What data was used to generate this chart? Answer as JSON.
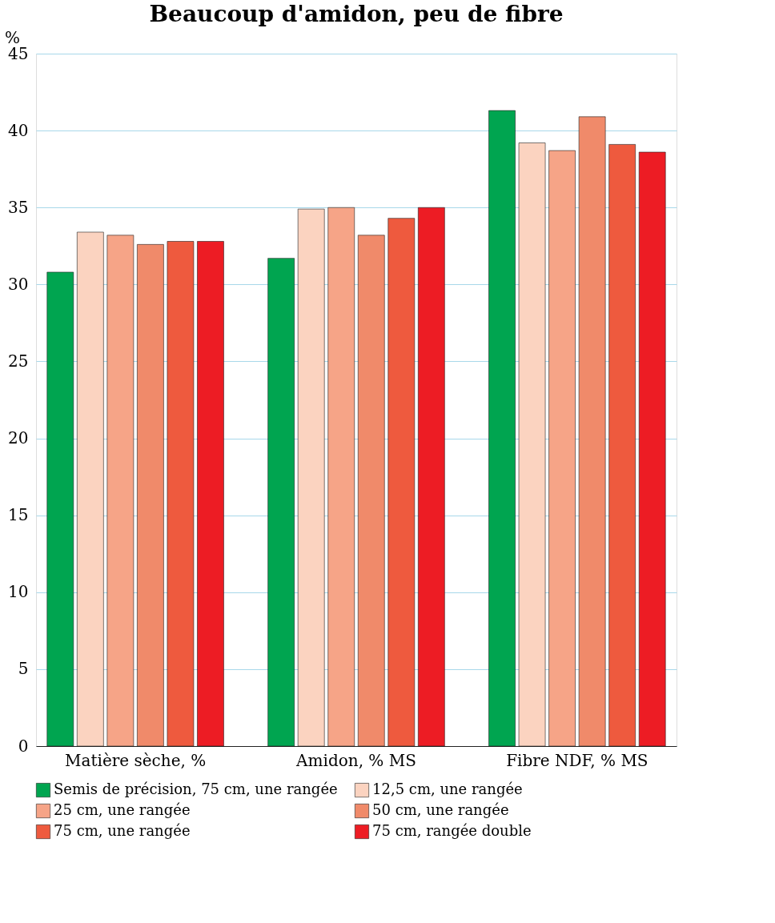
{
  "chart_data": {
    "type": "bar",
    "title": "Beaucoup d'amidon, peu de fibre",
    "ylabel": "%",
    "categories": [
      "Matière sèche, %",
      "Amidon, % MS",
      "Fibre NDF, % MS"
    ],
    "series": [
      {
        "name": "Semis de précision, 75 cm, une rangée",
        "color": "#00a550",
        "values": [
          30.8,
          31.7,
          41.3
        ]
      },
      {
        "name": "12,5 cm, une rangée",
        "color": "#fbd3c0",
        "values": [
          33.4,
          34.9,
          39.2
        ]
      },
      {
        "name": "25 cm, une rangée",
        "color": "#f6a487",
        "values": [
          33.2,
          35.0,
          38.7
        ]
      },
      {
        "name": "50 cm, une rangée",
        "color": "#f08a6a",
        "values": [
          32.6,
          33.2,
          40.9
        ]
      },
      {
        "name": "75 cm, une rangée",
        "color": "#ee5a3e",
        "values": [
          32.8,
          34.3,
          39.1
        ]
      },
      {
        "name": "75 cm, rangée double",
        "color": "#ed1c24",
        "values": [
          32.8,
          35.0,
          38.6
        ]
      }
    ],
    "ylim": [
      0,
      45
    ],
    "yticks": [
      0,
      5,
      10,
      15,
      20,
      25,
      30,
      35,
      40,
      45
    ],
    "grid": "y",
    "legend": "bottom"
  }
}
